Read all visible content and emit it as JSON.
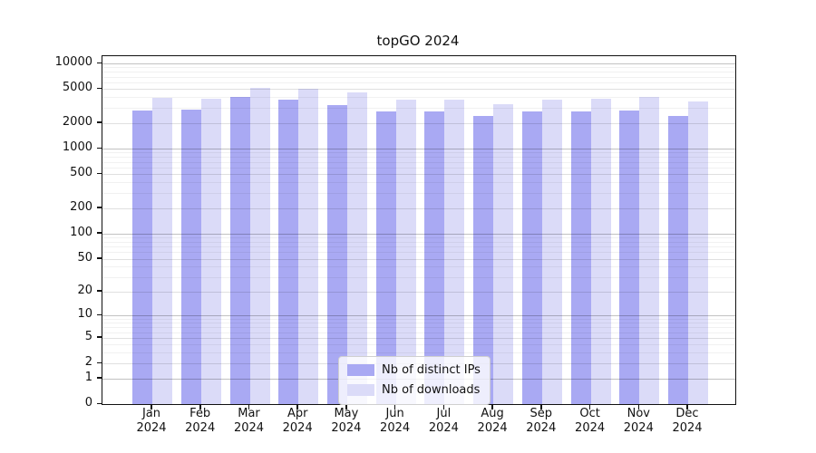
{
  "chart_data": {
    "type": "bar",
    "title": "topGO 2024",
    "categories": [
      "Jan 2024",
      "Feb 2024",
      "Mar 2024",
      "Apr 2024",
      "May 2024",
      "Jun 2024",
      "Jul 2024",
      "Aug 2024",
      "Sep 2024",
      "Oct 2024",
      "Nov 2024",
      "Dec 2024"
    ],
    "series": [
      {
        "name": "Nb of distinct IPs",
        "color": "#a9a9f3",
        "values": [
          2800,
          2900,
          4000,
          3800,
          3250,
          2700,
          2750,
          2400,
          2700,
          2700,
          2800,
          2400
        ]
      },
      {
        "name": "Nb of downloads",
        "color": "#dbdbf8",
        "values": [
          3900,
          3850,
          5200,
          5000,
          4550,
          3800,
          3750,
          3300,
          3750,
          3850,
          4000,
          3550
        ]
      }
    ],
    "xlabel": "",
    "ylabel": "",
    "y_scale": "log10(1+v)",
    "y_ticks": [
      0,
      1,
      2,
      5,
      10,
      20,
      50,
      100,
      200,
      500,
      1000,
      2000,
      5000,
      10000
    ],
    "ylim": [
      0,
      12000
    ],
    "grid": "both",
    "legend_position": "lower center",
    "legend_labels": [
      "Nb of distinct IPs",
      "Nb of downloads"
    ]
  }
}
